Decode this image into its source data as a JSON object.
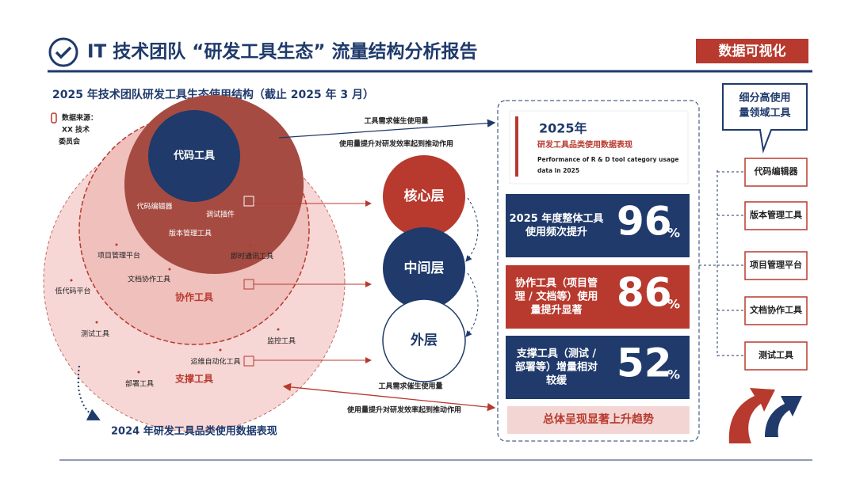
{
  "header": {
    "title": "IT 技术团队 “研发工具生态” 流量结构分析报告",
    "badge": "数据可视化"
  },
  "subtitle": "2025 年技术团队研发工具生态使用结构（截止 2025 年 3 月）",
  "source": [
    "数据来源：",
    "XX 技术",
    "委员会"
  ],
  "circles": {
    "core": "代码工具",
    "core_items": [
      "代码编辑器",
      "调试插件",
      "版本管理工具"
    ],
    "middle": "协作工具",
    "middle_items": [
      "项目管理平台",
      "即时通讯工具",
      "文档协作工具"
    ],
    "outer": "支撑工具",
    "outer_items": [
      "低代码平台",
      "测试工具",
      "监控工具",
      "运维自动化工具",
      "部署工具"
    ]
  },
  "caption_2024": "2024 年研发工具品类使用数据表现",
  "layers": [
    "核心层",
    "中间层",
    "外层"
  ],
  "arrows": {
    "top": [
      "工具需求催生使用量",
      "使用量提升对研发效率起到推动作用"
    ],
    "bottom": [
      "工具需求催生使用量",
      "使用量提升对研发效率起到推动作用"
    ]
  },
  "panel": {
    "year": "2025年",
    "heading": "研发工具品类使用数据表现",
    "english": [
      "Performance of R & D tool category usage",
      "data in 2025"
    ],
    "stats": [
      {
        "text": [
          "2025 年度整体工具",
          "使用频次提升"
        ],
        "value": "96",
        "unit": "%"
      },
      {
        "text": [
          "协作工具（项目管",
          "理 / 文档等）使用",
          "量提升显著"
        ],
        "value": "86",
        "unit": "%"
      },
      {
        "text": [
          "支撑工具（测试 /",
          "部署等）增量相对",
          "较缓"
        ],
        "value": "52",
        "unit": "%"
      }
    ],
    "conclusion": "总体呈现显著上升趋势"
  },
  "bubble": [
    "细分高使用",
    "量领域工具"
  ],
  "focus_tools": [
    "代码编辑器",
    "版本管理工具",
    "项目管理平台",
    "文档协作工具",
    "测试工具"
  ]
}
